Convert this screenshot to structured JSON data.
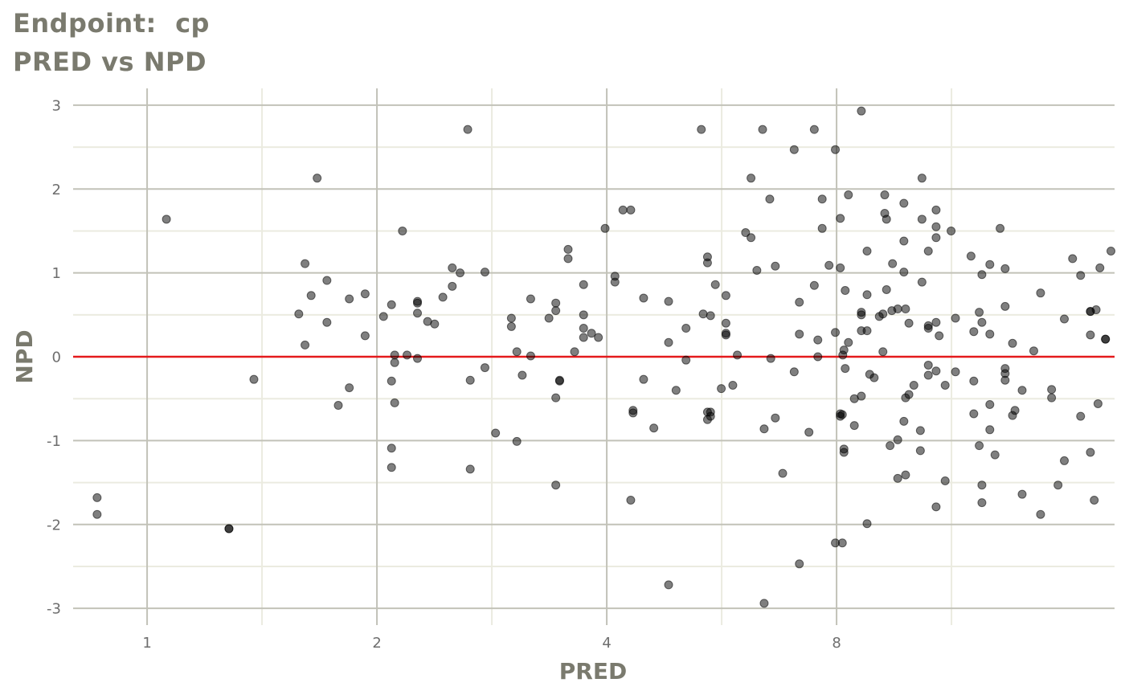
{
  "chart_data": {
    "type": "scatter",
    "title": "Endpoint:  cp",
    "subtitle": "PRED vs NPD",
    "xlabel": "PRED",
    "ylabel": "NPD",
    "x_scale": "log2",
    "xlim": [
      0.8,
      18.5
    ],
    "ylim": [
      -3.2,
      3.2
    ],
    "x_ticks": [
      1,
      2,
      4,
      8
    ],
    "x_tick_labels": [
      "1",
      "2",
      "4",
      "8"
    ],
    "y_ticks": [
      -3,
      -2,
      -1,
      0,
      1,
      2,
      3
    ],
    "y_tick_labels": [
      "-3",
      "-2",
      "-1",
      "0",
      "1",
      "2",
      "3"
    ],
    "grid": true,
    "reference_line": {
      "y": 0,
      "color": "#e41a1c"
    },
    "point_color": "#000000",
    "points": [
      [
        0.86,
        -1.68
      ],
      [
        0.86,
        -1.88
      ],
      [
        1.06,
        1.64
      ],
      [
        1.28,
        -2.05
      ],
      [
        1.28,
        -2.05
      ],
      [
        1.38,
        -0.27
      ],
      [
        1.58,
        0.51
      ],
      [
        1.61,
        1.11
      ],
      [
        1.61,
        0.14
      ],
      [
        1.64,
        0.73
      ],
      [
        1.67,
        2.13
      ],
      [
        1.72,
        0.91
      ],
      [
        1.72,
        0.41
      ],
      [
        1.78,
        -0.58
      ],
      [
        1.84,
        0.69
      ],
      [
        1.84,
        -0.37
      ],
      [
        1.93,
        0.75
      ],
      [
        1.93,
        0.25
      ],
      [
        2.04,
        0.48
      ],
      [
        2.09,
        0.62
      ],
      [
        2.09,
        -0.29
      ],
      [
        2.09,
        -1.09
      ],
      [
        2.09,
        -1.32
      ],
      [
        2.11,
        0.02
      ],
      [
        2.11,
        -0.07
      ],
      [
        2.11,
        -0.55
      ],
      [
        2.16,
        1.5
      ],
      [
        2.19,
        0.02
      ],
      [
        2.26,
        0.64
      ],
      [
        2.26,
        0.66
      ],
      [
        2.26,
        0.52
      ],
      [
        2.26,
        -0.02
      ],
      [
        2.33,
        0.42
      ],
      [
        2.38,
        0.39
      ],
      [
        2.44,
        0.71
      ],
      [
        2.51,
        0.84
      ],
      [
        2.51,
        1.06
      ],
      [
        2.57,
        1.0
      ],
      [
        2.63,
        2.71
      ],
      [
        2.65,
        -0.28
      ],
      [
        2.65,
        -1.34
      ],
      [
        2.77,
        1.01
      ],
      [
        2.77,
        -0.13
      ],
      [
        2.86,
        -0.91
      ],
      [
        3.0,
        0.46
      ],
      [
        3.0,
        0.36
      ],
      [
        3.05,
        0.06
      ],
      [
        3.05,
        -1.01
      ],
      [
        3.1,
        -0.22
      ],
      [
        3.18,
        0.69
      ],
      [
        3.18,
        0.01
      ],
      [
        3.36,
        0.46
      ],
      [
        3.43,
        0.64
      ],
      [
        3.43,
        0.55
      ],
      [
        3.43,
        -0.49
      ],
      [
        3.43,
        -1.53
      ],
      [
        3.47,
        -0.29
      ],
      [
        3.47,
        -0.28
      ],
      [
        3.56,
        1.28
      ],
      [
        3.56,
        1.17
      ],
      [
        3.63,
        0.06
      ],
      [
        3.73,
        0.86
      ],
      [
        3.73,
        0.5
      ],
      [
        3.73,
        0.34
      ],
      [
        3.73,
        0.23
      ],
      [
        3.82,
        0.28
      ],
      [
        3.9,
        0.23
      ],
      [
        3.98,
        1.53
      ],
      [
        4.1,
        0.89
      ],
      [
        4.1,
        0.96
      ],
      [
        4.2,
        1.75
      ],
      [
        4.3,
        1.75
      ],
      [
        4.33,
        -0.64
      ],
      [
        4.33,
        -0.67
      ],
      [
        4.3,
        -1.71
      ],
      [
        4.47,
        0.7
      ],
      [
        4.47,
        -0.27
      ],
      [
        4.61,
        -0.85
      ],
      [
        4.82,
        0.66
      ],
      [
        4.82,
        0.17
      ],
      [
        4.82,
        -2.72
      ],
      [
        4.93,
        -0.4
      ],
      [
        5.08,
        0.34
      ],
      [
        5.08,
        -0.04
      ],
      [
        5.32,
        2.71
      ],
      [
        5.35,
        0.51
      ],
      [
        5.42,
        1.19
      ],
      [
        5.42,
        1.12
      ],
      [
        5.42,
        -0.66
      ],
      [
        5.42,
        -0.75
      ],
      [
        5.47,
        0.49
      ],
      [
        5.47,
        -0.71
      ],
      [
        5.47,
        -0.66
      ],
      [
        5.55,
        0.86
      ],
      [
        5.65,
        -0.38
      ],
      [
        5.73,
        0.73
      ],
      [
        5.73,
        0.4
      ],
      [
        5.73,
        0.28
      ],
      [
        5.73,
        0.26
      ],
      [
        5.85,
        -0.34
      ],
      [
        5.93,
        0.02
      ],
      [
        6.08,
        1.48
      ],
      [
        6.18,
        1.42
      ],
      [
        6.18,
        2.13
      ],
      [
        6.29,
        1.03
      ],
      [
        6.4,
        2.71
      ],
      [
        6.43,
        -0.86
      ],
      [
        6.43,
        -2.94
      ],
      [
        6.54,
        1.88
      ],
      [
        6.56,
        -0.02
      ],
      [
        6.65,
        1.08
      ],
      [
        6.65,
        -0.73
      ],
      [
        6.8,
        -1.39
      ],
      [
        7.04,
        2.47
      ],
      [
        7.04,
        -0.18
      ],
      [
        7.15,
        0.65
      ],
      [
        7.15,
        0.27
      ],
      [
        7.15,
        -2.47
      ],
      [
        7.36,
        -0.9
      ],
      [
        7.48,
        2.71
      ],
      [
        7.48,
        0.85
      ],
      [
        7.56,
        0.2
      ],
      [
        7.56,
        0.0
      ],
      [
        7.66,
        1.88
      ],
      [
        7.66,
        1.53
      ],
      [
        7.82,
        1.09
      ],
      [
        7.97,
        2.47
      ],
      [
        7.97,
        0.29
      ],
      [
        7.97,
        -2.22
      ],
      [
        8.09,
        1.65
      ],
      [
        8.09,
        1.06
      ],
      [
        8.09,
        -0.68
      ],
      [
        8.09,
        -0.71
      ],
      [
        8.14,
        -0.69
      ],
      [
        8.14,
        -2.22
      ],
      [
        8.15,
        0.02
      ],
      [
        8.18,
        0.08
      ],
      [
        8.18,
        -1.1
      ],
      [
        8.18,
        -1.14
      ],
      [
        8.21,
        0.79
      ],
      [
        8.21,
        -0.14
      ],
      [
        8.29,
        1.93
      ],
      [
        8.29,
        0.17
      ],
      [
        8.44,
        -0.5
      ],
      [
        8.44,
        -0.82
      ],
      [
        8.62,
        2.93
      ],
      [
        8.62,
        0.53
      ],
      [
        8.62,
        0.5
      ],
      [
        8.62,
        0.31
      ],
      [
        8.62,
        -0.47
      ],
      [
        8.77,
        1.26
      ],
      [
        8.77,
        0.74
      ],
      [
        8.77,
        0.31
      ],
      [
        8.77,
        -1.99
      ],
      [
        8.84,
        -0.21
      ],
      [
        8.96,
        -0.25
      ],
      [
        9.1,
        0.48
      ],
      [
        9.2,
        0.06
      ],
      [
        9.2,
        0.51
      ],
      [
        9.25,
        1.93
      ],
      [
        9.25,
        1.71
      ],
      [
        9.3,
        1.64
      ],
      [
        9.3,
        0.8
      ],
      [
        9.4,
        -1.06
      ],
      [
        9.45,
        0.55
      ],
      [
        9.47,
        1.11
      ],
      [
        9.62,
        0.57
      ],
      [
        9.62,
        -0.99
      ],
      [
        9.62,
        -1.45
      ],
      [
        9.8,
        1.83
      ],
      [
        9.8,
        1.38
      ],
      [
        9.8,
        1.01
      ],
      [
        9.8,
        -0.77
      ],
      [
        9.85,
        0.57
      ],
      [
        9.85,
        -0.49
      ],
      [
        9.85,
        -1.41
      ],
      [
        9.95,
        0.4
      ],
      [
        9.95,
        -0.45
      ],
      [
        10.1,
        -0.34
      ],
      [
        10.3,
        -0.88
      ],
      [
        10.3,
        -1.12
      ],
      [
        10.35,
        2.13
      ],
      [
        10.35,
        1.64
      ],
      [
        10.35,
        0.89
      ],
      [
        10.55,
        1.26
      ],
      [
        10.55,
        0.37
      ],
      [
        10.55,
        0.34
      ],
      [
        10.55,
        -0.1
      ],
      [
        10.55,
        -0.22
      ],
      [
        10.8,
        1.75
      ],
      [
        10.8,
        1.55
      ],
      [
        10.8,
        1.42
      ],
      [
        10.8,
        0.41
      ],
      [
        10.8,
        -0.17
      ],
      [
        10.8,
        -1.79
      ],
      [
        10.9,
        0.25
      ],
      [
        11.1,
        -0.34
      ],
      [
        11.1,
        -1.48
      ],
      [
        11.3,
        1.5
      ],
      [
        11.45,
        0.46
      ],
      [
        11.45,
        -0.18
      ],
      [
        12.0,
        1.2
      ],
      [
        12.1,
        0.3
      ],
      [
        12.1,
        -0.29
      ],
      [
        12.1,
        -0.68
      ],
      [
        12.3,
        0.53
      ],
      [
        12.3,
        -1.06
      ],
      [
        12.4,
        0.41
      ],
      [
        12.4,
        0.98
      ],
      [
        12.4,
        -1.53
      ],
      [
        12.4,
        -1.74
      ],
      [
        12.7,
        1.1
      ],
      [
        12.7,
        0.27
      ],
      [
        12.7,
        -0.57
      ],
      [
        12.7,
        -0.87
      ],
      [
        12.9,
        -1.17
      ],
      [
        13.1,
        1.53
      ],
      [
        13.3,
        1.05
      ],
      [
        13.3,
        0.6
      ],
      [
        13.3,
        -0.14
      ],
      [
        13.3,
        -0.2
      ],
      [
        13.3,
        -0.28
      ],
      [
        13.6,
        0.16
      ],
      [
        13.6,
        -0.7
      ],
      [
        13.7,
        -0.64
      ],
      [
        14.0,
        -0.4
      ],
      [
        14.0,
        -1.64
      ],
      [
        14.5,
        0.07
      ],
      [
        14.8,
        0.76
      ],
      [
        14.8,
        -1.88
      ],
      [
        15.3,
        -0.39
      ],
      [
        15.3,
        -0.49
      ],
      [
        15.6,
        -1.53
      ],
      [
        15.9,
        0.45
      ],
      [
        15.9,
        -1.24
      ],
      [
        16.3,
        1.17
      ],
      [
        16.7,
        0.97
      ],
      [
        16.7,
        -0.71
      ],
      [
        17.2,
        0.54
      ],
      [
        17.2,
        0.54
      ],
      [
        17.2,
        0.26
      ],
      [
        17.2,
        -1.14
      ],
      [
        17.4,
        -1.71
      ],
      [
        17.5,
        0.56
      ],
      [
        17.6,
        -0.56
      ],
      [
        17.7,
        1.06
      ],
      [
        18.0,
        0.21
      ],
      [
        18.3,
        1.26
      ],
      [
        18.0,
        0.21
      ]
    ]
  }
}
